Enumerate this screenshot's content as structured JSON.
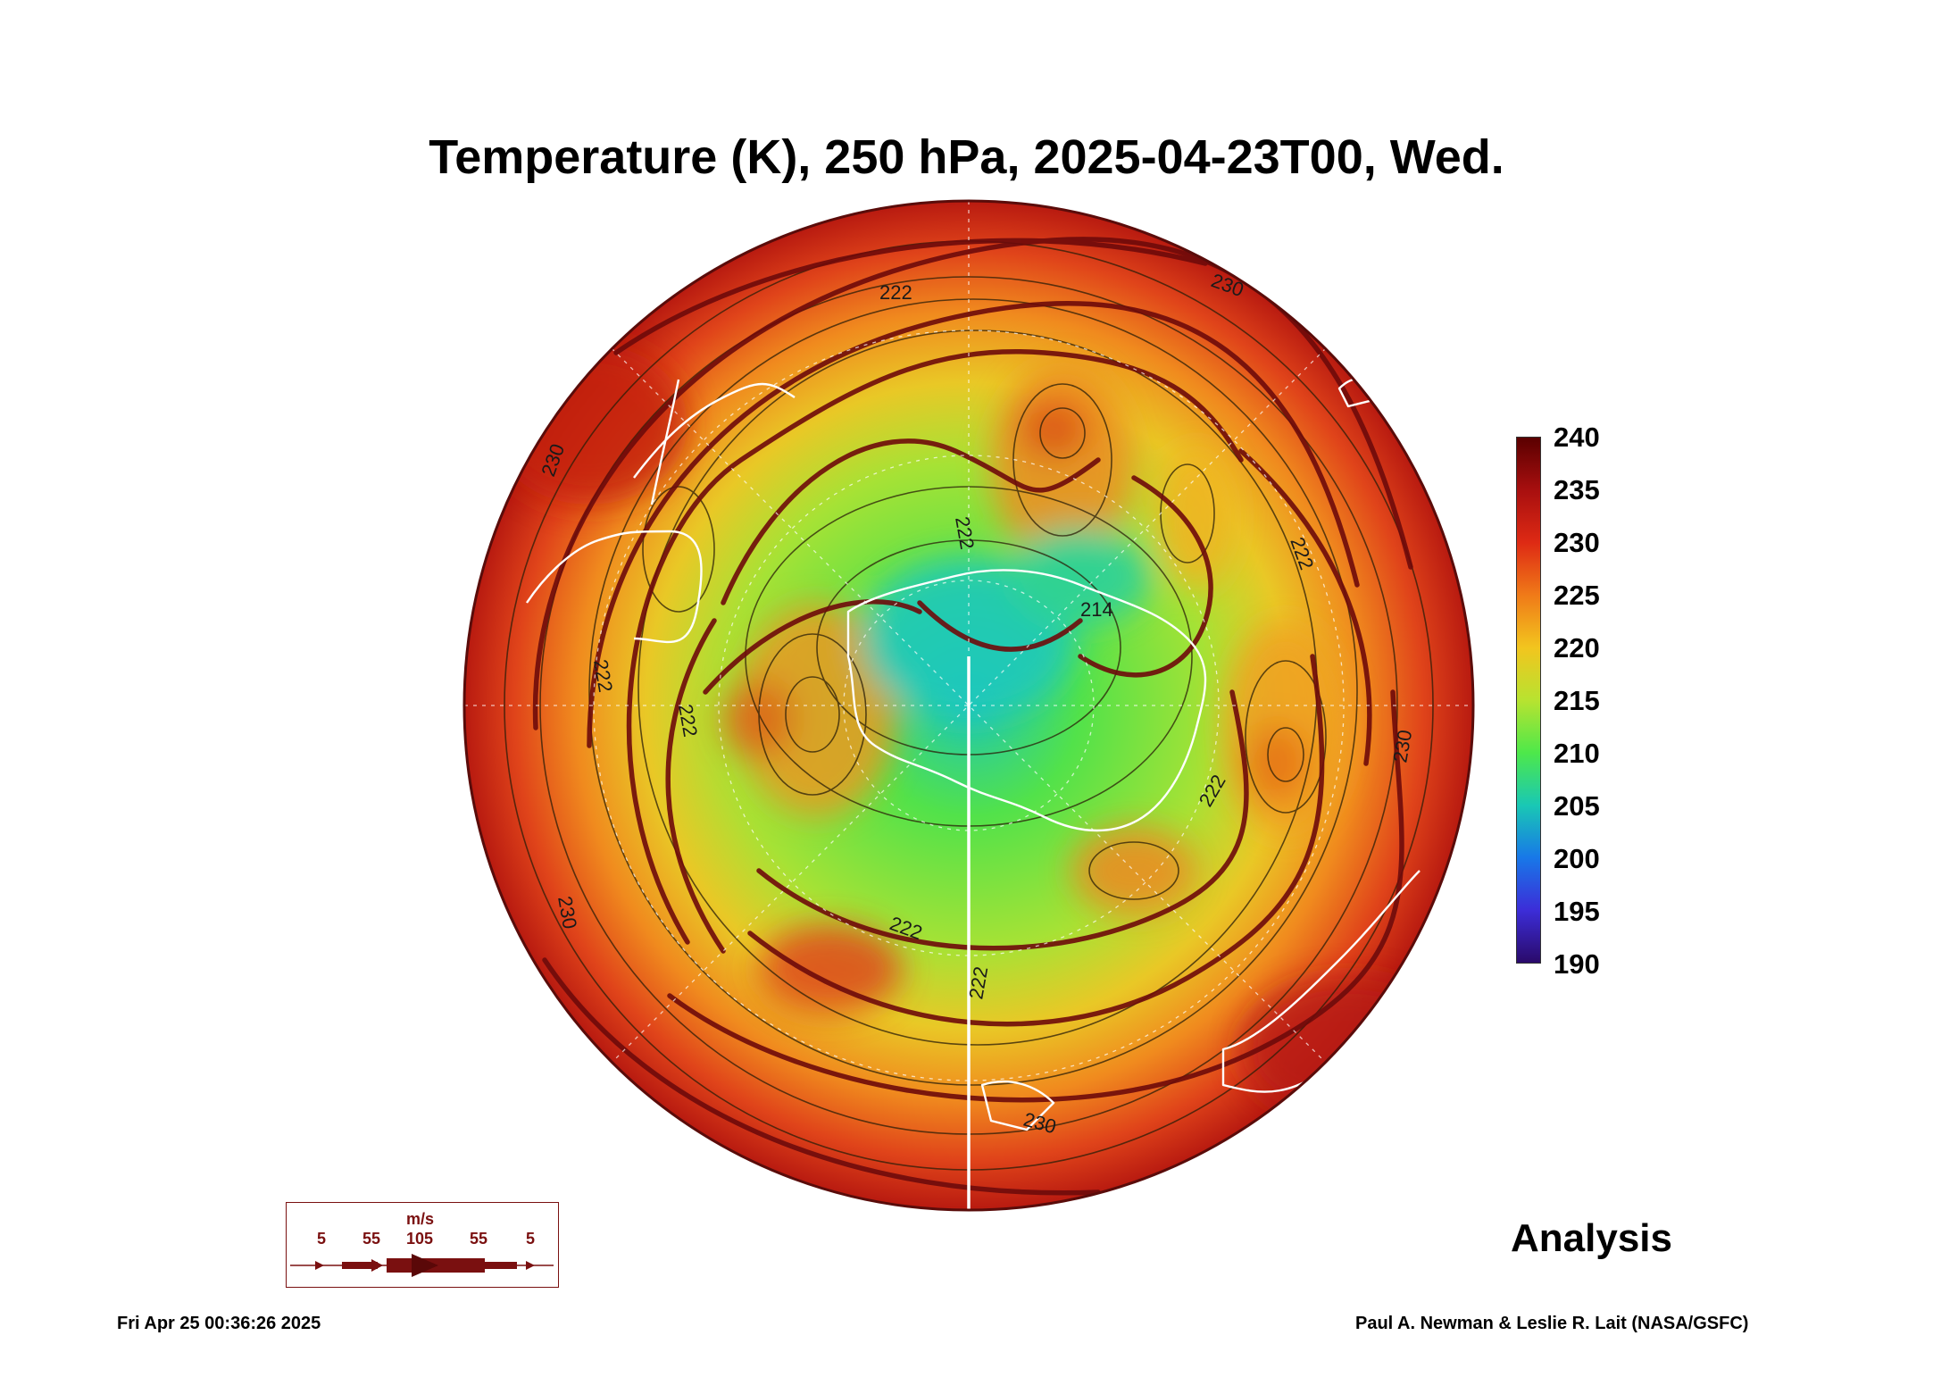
{
  "title": "Temperature (K), 250 hPa, 2025-04-23T00, Wed.",
  "colorbar": {
    "ticks": [
      "240",
      "235",
      "230",
      "225",
      "220",
      "215",
      "210",
      "205",
      "200",
      "195",
      "190"
    ],
    "stops": [
      "#5a0000",
      "#a80f0f",
      "#de2a14",
      "#f07a18",
      "#f2c51e",
      "#b8e330",
      "#4ee84a",
      "#19c8b4",
      "#1878e8",
      "#3c2dd8",
      "#2a0a6a"
    ]
  },
  "contour_labels": [
    "222",
    "222",
    "222",
    "222",
    "222",
    "222",
    "222",
    "222",
    "230",
    "230",
    "230",
    "230",
    "230",
    "214"
  ],
  "wind_legend": {
    "unit": "m/s",
    "values": [
      "5",
      "55",
      "105",
      "55",
      "5"
    ]
  },
  "analysis_label": "Analysis",
  "timestamp": "Fri Apr 25 00:36:26 2025",
  "credit": "Paul A. Newman & Leslie R. Lait (NASA/GSFC)"
}
